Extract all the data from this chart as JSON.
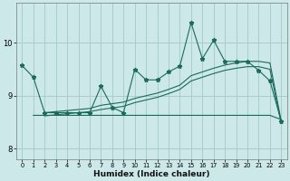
{
  "xlabel": "Humidex (Indice chaleur)",
  "bg_color": "#cce8e8",
  "line_color": "#1a6b5a",
  "grid_color": "#aacccc",
  "xlim": [
    -0.5,
    23.5
  ],
  "ylim": [
    7.8,
    10.75
  ],
  "x_ticks": [
    0,
    1,
    2,
    3,
    4,
    5,
    6,
    7,
    8,
    9,
    10,
    11,
    12,
    13,
    14,
    15,
    16,
    17,
    18,
    19,
    20,
    21,
    22,
    23
  ],
  "y_ticks": [
    8,
    9,
    10
  ],
  "zigzag_x": [
    0,
    1,
    2,
    3,
    4,
    5,
    6,
    7,
    8,
    9,
    10,
    11,
    12,
    13,
    14,
    15,
    16,
    17,
    18,
    19,
    20,
    21,
    22,
    23
  ],
  "zigzag_y": [
    9.57,
    9.35,
    8.68,
    8.68,
    8.68,
    8.68,
    8.68,
    9.18,
    8.78,
    8.68,
    9.5,
    9.3,
    9.3,
    9.45,
    9.56,
    10.38,
    9.7,
    10.05,
    9.65,
    9.65,
    9.65,
    9.48,
    9.28,
    8.52
  ],
  "upper_trend_x": [
    2,
    3,
    4,
    5,
    6,
    7,
    8,
    9,
    10,
    11,
    12,
    13,
    14,
    15,
    16,
    17,
    18,
    19,
    20,
    21,
    22,
    23
  ],
  "upper_trend_y": [
    8.68,
    8.7,
    8.72,
    8.74,
    8.76,
    8.82,
    8.85,
    8.88,
    8.95,
    9.0,
    9.05,
    9.12,
    9.2,
    9.38,
    9.45,
    9.52,
    9.58,
    9.62,
    9.65,
    9.65,
    9.62,
    8.52
  ],
  "lower_trend_x": [
    2,
    3,
    4,
    5,
    6,
    7,
    8,
    9,
    10,
    11,
    12,
    13,
    14,
    15,
    16,
    17,
    18,
    19,
    20,
    21,
    22,
    23
  ],
  "lower_trend_y": [
    8.62,
    8.64,
    8.66,
    8.68,
    8.7,
    8.74,
    8.77,
    8.8,
    8.87,
    8.92,
    8.97,
    9.04,
    9.12,
    9.28,
    9.35,
    9.42,
    9.48,
    9.52,
    9.55,
    9.55,
    9.5,
    8.48
  ],
  "flat_line_x": [
    1,
    2,
    3,
    4,
    5,
    6,
    7,
    8,
    9,
    10,
    11,
    12,
    13,
    14,
    15,
    16,
    17,
    18,
    19,
    20,
    21,
    22,
    23
  ],
  "flat_line_y": [
    8.63,
    8.63,
    8.63,
    8.63,
    8.63,
    8.63,
    8.63,
    8.63,
    8.63,
    8.63,
    8.63,
    8.63,
    8.63,
    8.63,
    8.63,
    8.63,
    8.63,
    8.63,
    8.63,
    8.63,
    8.63,
    8.63,
    8.55
  ]
}
